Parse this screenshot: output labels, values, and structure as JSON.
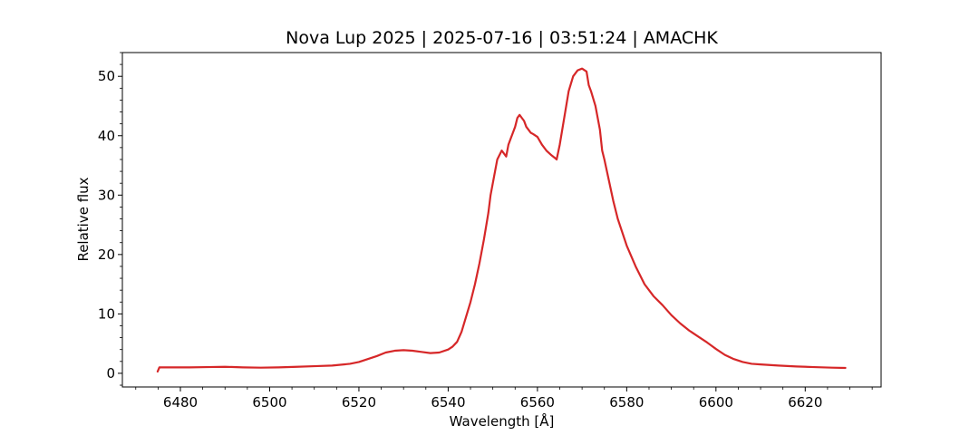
{
  "chart_data": {
    "type": "line",
    "title": "Nova Lup 2025 | 2025-07-16 | 03:51:24 | AMACHK",
    "xlabel": "Wavelength [Å]",
    "ylabel": "Relative flux",
    "xlim": [
      6467,
      6637
    ],
    "ylim": [
      -2.3,
      54
    ],
    "xticks": [
      6480,
      6500,
      6520,
      6540,
      6560,
      6580,
      6600,
      6620
    ],
    "yticks": [
      0,
      10,
      20,
      30,
      40,
      50
    ],
    "grid": false,
    "series": [
      {
        "color": "#d62728",
        "x": [
          6474.9,
          6475.3,
          6478,
          6482,
          6486,
          6490,
          6494,
          6498,
          6502,
          6506,
          6510,
          6514,
          6518,
          6520,
          6522,
          6524,
          6526,
          6528,
          6530,
          6532,
          6534,
          6536,
          6538,
          6540,
          6541,
          6542,
          6543,
          6544,
          6545,
          6546,
          6547,
          6548,
          6549,
          6549.5,
          6550,
          6550.5,
          6551,
          6552,
          6553,
          6553.5,
          6554,
          6554.5,
          6555,
          6555.5,
          6556,
          6556.5,
          6557,
          6557.5,
          6558,
          6558.5,
          6559,
          6560,
          6561,
          6562,
          6563,
          6564,
          6564.3,
          6565,
          6566,
          6567,
          6568,
          6569,
          6570,
          6571,
          6571.5,
          6572,
          6573,
          6574,
          6574.5,
          6575,
          6576,
          6577,
          6578,
          6580,
          6582,
          6584,
          6586,
          6588,
          6590,
          6592,
          6594,
          6596,
          6598,
          6600,
          6602,
          6604,
          6606,
          6608,
          6610,
          6614,
          6618,
          6622,
          6626,
          6629
        ],
        "y": [
          0.3,
          1.0,
          1.0,
          1.0,
          1.05,
          1.1,
          1.0,
          0.95,
          1.0,
          1.1,
          1.2,
          1.3,
          1.6,
          1.9,
          2.4,
          2.9,
          3.5,
          3.8,
          3.9,
          3.8,
          3.6,
          3.4,
          3.5,
          4.0,
          4.5,
          5.3,
          7.0,
          9.5,
          12.0,
          15.0,
          18.5,
          22.5,
          27.0,
          30.0,
          32.0,
          34.0,
          36.0,
          37.5,
          36.5,
          38.5,
          39.5,
          40.5,
          41.5,
          43.0,
          43.5,
          43.0,
          42.5,
          41.5,
          41.0,
          40.5,
          40.3,
          39.8,
          38.5,
          37.5,
          36.8,
          36.2,
          36.0,
          38.5,
          43.0,
          47.5,
          50.0,
          51.0,
          51.3,
          50.8,
          48.5,
          47.5,
          45.0,
          41.0,
          37.5,
          36.0,
          32.5,
          29.0,
          26.0,
          21.5,
          18.0,
          15.0,
          13.0,
          11.5,
          9.8,
          8.4,
          7.2,
          6.2,
          5.2,
          4.1,
          3.1,
          2.4,
          1.9,
          1.6,
          1.5,
          1.3,
          1.15,
          1.05,
          0.95,
          0.9
        ]
      }
    ]
  }
}
